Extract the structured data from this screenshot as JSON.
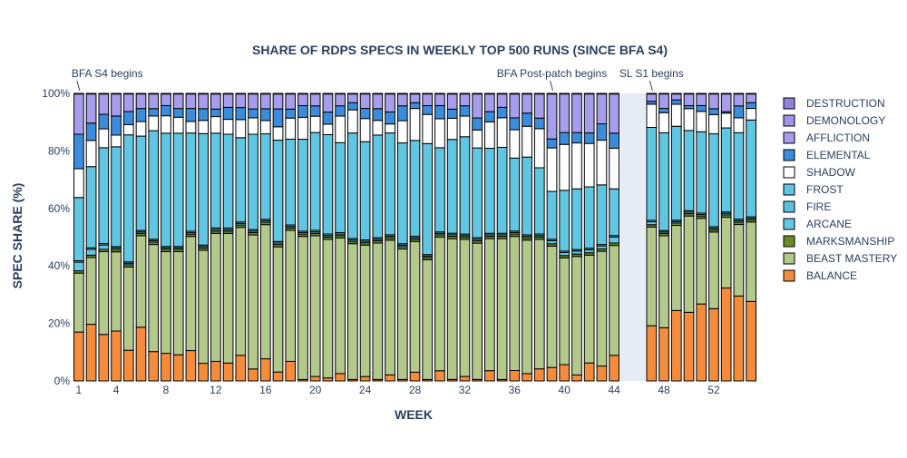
{
  "chart_data": {
    "type": "bar",
    "stacked": true,
    "title": "SHARE OF RDPS SPECS IN WEEKLY TOP 500 RUNS (SINCE BFA S4)",
    "xlabel": "WEEK",
    "ylabel": "SPEC SHARE (%)",
    "ylim": [
      0,
      100
    ],
    "y_tick_values": [
      0,
      20,
      40,
      60,
      80,
      100
    ],
    "y_tick_labels": [
      "0%",
      "20%",
      "40%",
      "60%",
      "80%",
      "100%"
    ],
    "x_tick_values": [
      1,
      4,
      8,
      12,
      16,
      20,
      24,
      28,
      32,
      36,
      40,
      44,
      48,
      52
    ],
    "x_tick_labels": [
      "1",
      "4",
      "8",
      "12",
      "16",
      "20",
      "24",
      "28",
      "32",
      "36",
      "40",
      "44",
      "48",
      "52"
    ],
    "x_range": [
      0.5,
      55.5
    ],
    "grid": false,
    "legend_position": "right",
    "background_colors": {
      "plot": "#ffffff",
      "shaded_band": "#e5ecf6"
    },
    "shaded_band_weeks": [
      44.5,
      46.5
    ],
    "annotations": [
      {
        "text": "BFA S4 begins",
        "week": 1
      },
      {
        "text": "BFA Post-patch begins",
        "week": 39
      },
      {
        "text": "SL S1 begins",
        "week": 47
      }
    ],
    "x": [
      1,
      2,
      3,
      4,
      5,
      6,
      7,
      8,
      9,
      10,
      11,
      12,
      13,
      14,
      15,
      16,
      17,
      18,
      19,
      20,
      21,
      22,
      23,
      24,
      25,
      26,
      27,
      28,
      29,
      30,
      31,
      32,
      33,
      34,
      35,
      36,
      37,
      38,
      39,
      40,
      41,
      42,
      43,
      44,
      47,
      48,
      49,
      50,
      51,
      52,
      53,
      54,
      55
    ],
    "series": [
      {
        "name": "BALANCE",
        "color": "#f48c3c",
        "values": [
          17,
          19.5,
          16,
          17,
          10.5,
          18.5,
          10,
          9.5,
          9,
          10.5,
          6,
          6.5,
          6,
          8.5,
          4,
          7.5,
          3,
          6.5,
          0.5,
          1.5,
          1,
          2.5,
          0.5,
          1.5,
          0.5,
          2,
          0.5,
          3,
          0.5,
          3.5,
          0.5,
          1.5,
          0.5,
          3.5,
          0.5,
          3.5,
          2.5,
          4,
          4.5,
          5.5,
          2,
          6,
          5,
          8.5,
          19,
          18.5,
          24,
          23.5,
          26.5,
          24.5,
          31.5,
          28.5,
          27.5
        ]
      },
      {
        "name": "BEAST MASTERY",
        "color": "#b3c98c",
        "values": [
          20.5,
          23,
          28.5,
          27,
          28.5,
          31.5,
          36.5,
          35,
          35.5,
          39.5,
          38.5,
          42.5,
          43.5,
          42.5,
          45,
          45.5,
          42,
          43.5,
          49,
          47.5,
          46,
          46,
          47,
          45.5,
          46.5,
          45,
          44,
          45,
          41,
          46,
          46.5,
          46.5,
          45.5,
          45,
          47.5,
          45,
          45.5,
          43,
          40.5,
          36,
          40,
          36,
          38.5,
          36.5,
          34,
          32,
          29,
          33,
          29.5,
          26,
          24,
          24,
          27.5
        ]
      },
      {
        "name": "MARKSMANSHIP",
        "color": "#6b8b2a",
        "values": [
          0.8,
          0.8,
          0.8,
          0.8,
          0.8,
          0.8,
          0.8,
          0.8,
          0.8,
          0.8,
          0.8,
          0.8,
          0.8,
          0.8,
          0.8,
          0.8,
          0.8,
          0.8,
          0.8,
          0.8,
          0.8,
          0.8,
          0.8,
          0.8,
          0.8,
          0.8,
          0.8,
          0.8,
          0.8,
          0.8,
          0.8,
          0.8,
          0.8,
          0.8,
          0.8,
          0.8,
          0.8,
          0.8,
          0.8,
          0.8,
          0.8,
          0.8,
          0.8,
          0.8,
          0.8,
          0.8,
          0.8,
          0.8,
          0.8,
          0.8,
          0.8,
          0.8,
          0.8
        ]
      },
      {
        "name": "ARCANE",
        "color": "#64c8e4",
        "values": [
          3,
          2,
          1.5,
          0.5,
          0.5,
          0.5,
          0.5,
          0.5,
          0.5,
          0.5,
          0.5,
          0.5,
          0.5,
          0.5,
          0.5,
          0.5,
          0.5,
          0.5,
          0.5,
          0.5,
          0.5,
          0.5,
          0.5,
          0.5,
          0.5,
          0.5,
          0.5,
          0.5,
          0.5,
          0.5,
          0.5,
          0.5,
          0.5,
          0.5,
          0.5,
          0.5,
          0.5,
          0.5,
          1,
          1,
          1,
          1,
          1,
          2,
          1,
          0.5,
          0.5,
          0.5,
          0.5,
          0.5,
          0.5,
          0.5,
          0.5
        ]
      },
      {
        "name": "FIRE",
        "color": "#5ec0e0",
        "values": [
          0.5,
          0.5,
          0.5,
          0.5,
          0.5,
          0.5,
          0.5,
          0.5,
          0.5,
          0.5,
          0.5,
          0.5,
          0.5,
          0.5,
          0.5,
          0.5,
          0.5,
          0.5,
          0.5,
          0.5,
          0.5,
          0.5,
          0.5,
          0.5,
          0.5,
          0.5,
          0.5,
          0.5,
          0.5,
          0.5,
          0.5,
          0.5,
          0.5,
          0.5,
          0.5,
          0.5,
          0.5,
          0.5,
          0.5,
          0.5,
          0.5,
          0.5,
          0.5,
          0.5,
          0.5,
          0.5,
          0.5,
          0.5,
          0.5,
          0.5,
          0.5,
          0.5,
          0.5
        ]
      },
      {
        "name": "FROST",
        "color": "#60c6e2",
        "values": [
          22,
          28,
          33,
          34,
          43.5,
          32.5,
          37,
          39,
          39,
          34,
          38,
          31.5,
          31.5,
          28,
          32,
          29,
          34,
          28.5,
          31.5,
          33,
          33,
          30.5,
          36.5,
          34,
          35,
          34,
          34,
          33,
          38,
          29,
          31,
          33,
          30,
          29,
          29,
          24.5,
          26.5,
          22,
          16,
          20.5,
          20.5,
          20.5,
          20,
          15.5,
          32,
          34,
          32,
          27.5,
          28,
          31.5,
          28.5,
          29,
          33.5
        ]
      },
      {
        "name": "SHADOW",
        "color": "#ffffff",
        "values": [
          10,
          9,
          6.5,
          4,
          3.5,
          5,
          5,
          6,
          5.5,
          4,
          4.5,
          5.5,
          5,
          6,
          5.5,
          4.5,
          4.5,
          7,
          7.5,
          5.5,
          3.5,
          9,
          8,
          8,
          5,
          3,
          7.5,
          11,
          10,
          10,
          7,
          7,
          6,
          9,
          10,
          9.5,
          10.5,
          13,
          14.5,
          15.5,
          15.5,
          14.5,
          15,
          13.5,
          8,
          7,
          7.5,
          7.5,
          7,
          6.5,
          5,
          5,
          4
        ]
      },
      {
        "name": "ELEMENTAL",
        "color": "#3c8cdc",
        "values": [
          12,
          6,
          5,
          6.5,
          4.5,
          4.5,
          2.5,
          3.5,
          3,
          4.5,
          4,
          2.5,
          4,
          4,
          3,
          4,
          6,
          3,
          4,
          3.5,
          4,
          3.5,
          2.5,
          3.5,
          4,
          4,
          5,
          2,
          3,
          4.5,
          3,
          3.5,
          4,
          3.5,
          3.5,
          4,
          4.5,
          3.5,
          3,
          4,
          3.5,
          3.5,
          5.5,
          5,
          1,
          1.5,
          1.5,
          1,
          2,
          2,
          0.5,
          4,
          2
        ]
      },
      {
        "name": "AFFLICTION",
        "color": "#a89cec",
        "values": [
          14,
          10,
          7,
          7.5,
          6,
          5,
          5,
          4,
          5,
          5,
          5,
          5,
          4.5,
          4.5,
          5,
          5,
          5,
          5,
          4,
          4,
          6,
          4,
          3,
          5,
          5,
          6,
          4,
          3,
          4,
          4,
          5,
          4,
          8,
          6,
          4.5,
          8,
          6.5,
          8,
          15,
          13,
          13,
          13,
          10,
          13,
          2.5,
          5,
          2,
          4,
          4,
          5,
          6,
          4,
          3
        ]
      },
      {
        "name": "DEMONOLOGY",
        "color": "#9e94e8",
        "values": [
          0.2,
          0.2,
          0.2,
          0.2,
          0.2,
          0.2,
          0.2,
          0.2,
          0.2,
          0.2,
          0.2,
          0.2,
          0.2,
          0.2,
          0.2,
          0.2,
          0.2,
          0.2,
          0.2,
          0.2,
          0.2,
          0.2,
          0.2,
          0.2,
          0.2,
          0.2,
          0.2,
          0.2,
          0.2,
          0.2,
          0.2,
          0.2,
          0.2,
          0.2,
          0.2,
          0.2,
          0.2,
          0.2,
          0.2,
          0.2,
          0.2,
          0.2,
          0.2,
          0.2,
          0.2,
          0.2,
          0.2,
          0.2,
          0.2,
          0.2,
          0.2,
          0.2,
          0.2
        ]
      },
      {
        "name": "DESTRUCTION",
        "color": "#8e84e0",
        "values": [
          0,
          0,
          0,
          0,
          0,
          0,
          0,
          0,
          0,
          0,
          0,
          0,
          0,
          0,
          0,
          0,
          0,
          0,
          0,
          0,
          0,
          0,
          0,
          0,
          0,
          0,
          0,
          0,
          0,
          0,
          0,
          0,
          0,
          0,
          0,
          0,
          0,
          0,
          0,
          0,
          0,
          0,
          0,
          0,
          0,
          0,
          0,
          0,
          0,
          0,
          0,
          0,
          0
        ]
      }
    ]
  }
}
